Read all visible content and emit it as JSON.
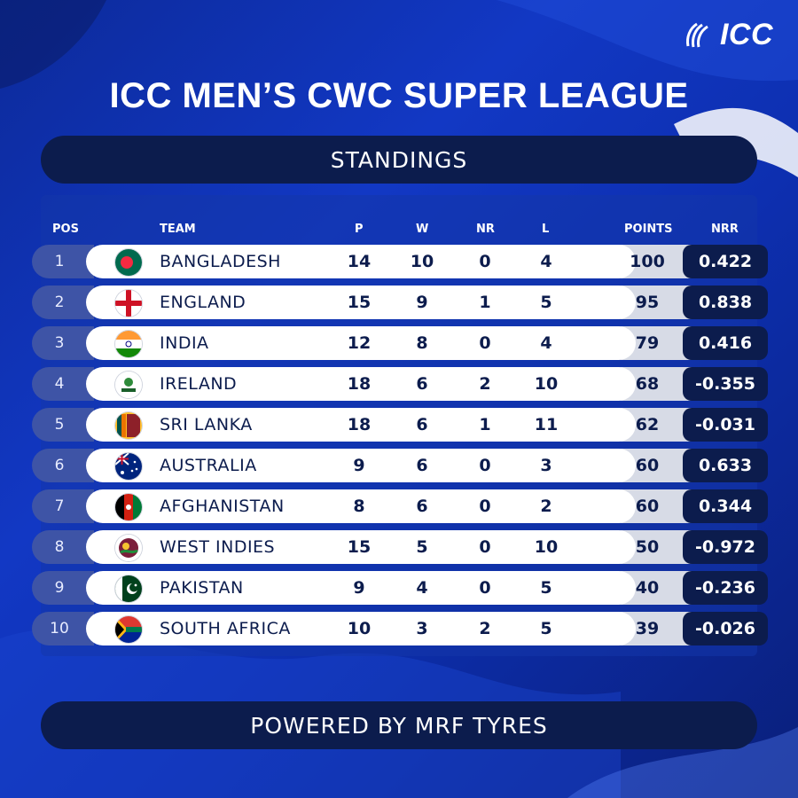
{
  "brand": {
    "logo_text": "ICC"
  },
  "title": "ICC MEN’S CWC SUPER LEAGUE",
  "subtitle": "STANDINGS",
  "footer": "POWERED BY MRF TYRES",
  "columns": {
    "pos": "POS",
    "team": "TEAM",
    "p": "P",
    "w": "W",
    "nr": "NR",
    "l": "L",
    "points": "POINTS",
    "nrr": "NRR"
  },
  "colors": {
    "background": "#1238c4",
    "navy": "#0c1c4d",
    "pos_box": "#3e54a6",
    "points_box": "#d7dbe6",
    "row_bg": "#ffffff"
  },
  "rows": [
    {
      "pos": "1",
      "team": "BANGLADESH",
      "flag": "bangladesh-flag-icon",
      "p": "14",
      "w": "10",
      "nr": "0",
      "l": "4",
      "points": "100",
      "nrr": "0.422"
    },
    {
      "pos": "2",
      "team": "ENGLAND",
      "flag": "england-flag-icon",
      "p": "15",
      "w": "9",
      "nr": "1",
      "l": "5",
      "points": "95",
      "nrr": "0.838"
    },
    {
      "pos": "3",
      "team": "INDIA",
      "flag": "india-flag-icon",
      "p": "12",
      "w": "8",
      "nr": "0",
      "l": "4",
      "points": "79",
      "nrr": "0.416"
    },
    {
      "pos": "4",
      "team": "IRELAND",
      "flag": "ireland-cricket-logo-icon",
      "p": "18",
      "w": "6",
      "nr": "2",
      "l": "10",
      "points": "68",
      "nrr": "-0.355"
    },
    {
      "pos": "5",
      "team": "SRI LANKA",
      "flag": "sri-lanka-flag-icon",
      "p": "18",
      "w": "6",
      "nr": "1",
      "l": "11",
      "points": "62",
      "nrr": "-0.031"
    },
    {
      "pos": "6",
      "team": "AUSTRALIA",
      "flag": "australia-flag-icon",
      "p": "9",
      "w": "6",
      "nr": "0",
      "l": "3",
      "points": "60",
      "nrr": "0.633"
    },
    {
      "pos": "7",
      "team": "AFGHANISTAN",
      "flag": "afghanistan-flag-icon",
      "p": "8",
      "w": "6",
      "nr": "0",
      "l": "2",
      "points": "60",
      "nrr": "0.344"
    },
    {
      "pos": "8",
      "team": "WEST INDIES",
      "flag": "west-indies-logo-icon",
      "p": "15",
      "w": "5",
      "nr": "0",
      "l": "10",
      "points": "50",
      "nrr": "-0.972"
    },
    {
      "pos": "9",
      "team": "PAKISTAN",
      "flag": "pakistan-flag-icon",
      "p": "9",
      "w": "4",
      "nr": "0",
      "l": "5",
      "points": "40",
      "nrr": "-0.236"
    },
    {
      "pos": "10",
      "team": "SOUTH AFRICA",
      "flag": "south-africa-flag-icon",
      "p": "10",
      "w": "3",
      "nr": "2",
      "l": "5",
      "points": "39",
      "nrr": "-0.026"
    }
  ]
}
